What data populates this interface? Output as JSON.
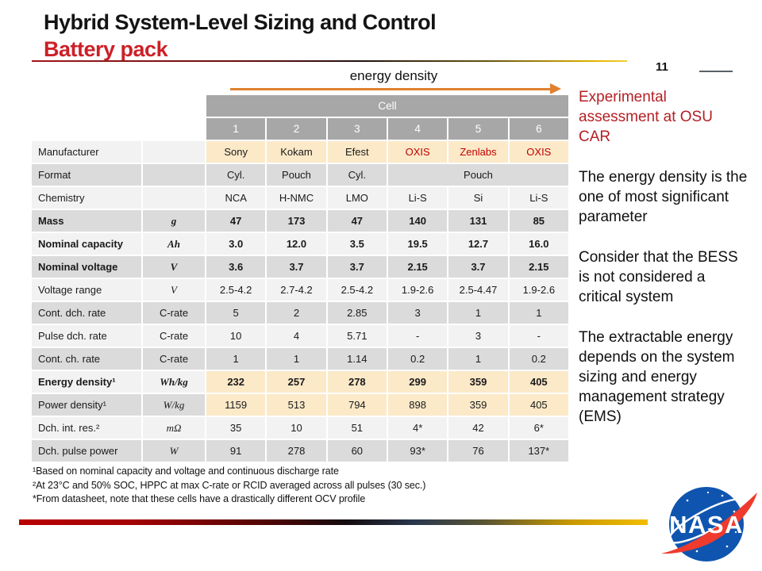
{
  "slide": {
    "title_line1": "Hybrid System-Level Sizing and Control",
    "title_line2": "Battery pack",
    "page_number": "11",
    "arrow_label": "energy density"
  },
  "table": {
    "header_group": "Cell",
    "column_numbers": [
      "1",
      "2",
      "3",
      "4",
      "5",
      "6"
    ],
    "rows": [
      {
        "label": "Manufacturer",
        "unit": "",
        "unit_math": false,
        "bold": false,
        "cream": true,
        "values_bold": false,
        "values": [
          "Sony",
          "Kokam",
          "Efest",
          "OXIS",
          "Zenlabs",
          "OXIS"
        ],
        "red": [
          3,
          4,
          5
        ]
      },
      {
        "label": "Format",
        "unit": "",
        "unit_math": false,
        "bold": false,
        "cream": false,
        "values_bold": false,
        "values": [
          "Cyl.",
          "Pouch",
          "Cyl.",
          {
            "text": "Pouch",
            "span": 3
          }
        ]
      },
      {
        "label": "Chemistry",
        "unit": "",
        "unit_math": false,
        "bold": false,
        "cream": false,
        "values_bold": false,
        "values": [
          "NCA",
          "H-NMC",
          "LMO",
          "Li-S",
          "Si",
          "Li-S"
        ]
      },
      {
        "label": "Mass",
        "unit": "g",
        "unit_math": true,
        "bold": true,
        "cream": false,
        "values_bold": true,
        "values": [
          "47",
          "173",
          "47",
          "140",
          "131",
          "85"
        ]
      },
      {
        "label": "Nominal capacity",
        "unit": "Ah",
        "unit_math": true,
        "bold": true,
        "cream": false,
        "values_bold": true,
        "values": [
          "3.0",
          "12.0",
          "3.5",
          "19.5",
          "12.7",
          "16.0"
        ]
      },
      {
        "label": "Nominal voltage",
        "unit": "V",
        "unit_math": true,
        "bold": true,
        "cream": false,
        "values_bold": true,
        "values": [
          "3.6",
          "3.7",
          "3.7",
          "2.15",
          "3.7",
          "2.15"
        ]
      },
      {
        "label": "Voltage range",
        "unit": "V",
        "unit_math": true,
        "bold": false,
        "cream": false,
        "values_bold": false,
        "values": [
          "2.5-4.2",
          "2.7-4.2",
          "2.5-4.2",
          "1.9-2.6",
          "2.5-4.47",
          "1.9-2.6"
        ]
      },
      {
        "label": "Cont. dch. rate",
        "unit": "C-rate",
        "unit_math": false,
        "bold": false,
        "cream": false,
        "values_bold": false,
        "values": [
          "5",
          "2",
          "2.85",
          "3",
          "1",
          "1"
        ]
      },
      {
        "label": "Pulse dch. rate",
        "unit": "C-rate",
        "unit_math": false,
        "bold": false,
        "cream": false,
        "values_bold": false,
        "values": [
          "10",
          "4",
          "5.71",
          "-",
          "3",
          "-"
        ]
      },
      {
        "label": "Cont. ch. rate",
        "unit": "C-rate",
        "unit_math": false,
        "bold": false,
        "cream": false,
        "values_bold": false,
        "values": [
          "1",
          "1",
          "1.14",
          "0.2",
          "1",
          "0.2"
        ]
      },
      {
        "label": "Energy density¹",
        "unit": "Wh/kg",
        "unit_math": true,
        "bold": true,
        "cream": true,
        "values_bold": true,
        "values": [
          "232",
          "257",
          "278",
          "299",
          "359",
          "405"
        ]
      },
      {
        "label": "Power density¹",
        "unit": "W/kg",
        "unit_math": true,
        "bold": false,
        "cream": true,
        "values_bold": false,
        "values": [
          "1159",
          "513",
          "794",
          "898",
          "359",
          "405"
        ]
      },
      {
        "label": "Dch. int. res.²",
        "unit": "mΩ",
        "unit_math": true,
        "bold": false,
        "cream": false,
        "values_bold": false,
        "values": [
          "35",
          "10",
          "51",
          "4*",
          "42",
          "6*"
        ]
      },
      {
        "label": "Dch. pulse power",
        "unit": "W",
        "unit_math": true,
        "bold": false,
        "cream": false,
        "values_bold": false,
        "values": [
          "91",
          "278",
          "60",
          "93*",
          "76",
          "137*"
        ]
      }
    ]
  },
  "footnotes": [
    "¹Based on nominal capacity and voltage and continuous discharge rate",
    "²At 23°C and 50% SOC, HPPC at max C-rate or RCID averaged across all pulses (30 sec.)",
    "*From datasheet, note that these cells have a drastically different OCV profile"
  ],
  "sidebar": {
    "heading": "Experimental assessment at OSU CAR",
    "paragraphs": [
      "The energy density is the one of  most significant parameter",
      "Consider that the BESS is not considered a critical system",
      "The extractable energy depends on the system sizing and energy management strategy (EMS)"
    ]
  },
  "nasa_logo_text": "NASA",
  "colors": {
    "title_accent": "#cc2027",
    "sidebar_heading": "#b41f24",
    "table_red_text": "#c00000",
    "header_gray": "#a7a7a7",
    "row_light": "#f2f2f2",
    "row_dark": "#dbdbdb",
    "cream_highlight": "#fbe9c8",
    "arrow_orange": "#e0812e",
    "nasa_blue": "#0f55b0",
    "nasa_red": "#ef3b2d"
  }
}
